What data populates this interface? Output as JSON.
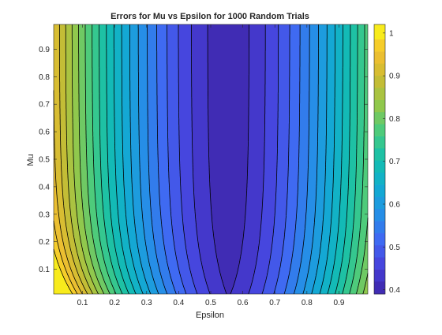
{
  "chart_data": {
    "type": "heatmap",
    "subtype": "filled-contour",
    "title": "Errors for Mu vs Epsilon for 1000 Random Trials",
    "xlabel": "Epsilon",
    "ylabel": "Mu",
    "xlim": [
      0.01,
      0.99
    ],
    "ylim": [
      0.01,
      0.99
    ],
    "xticks": [
      0.1,
      0.2,
      0.3,
      0.4,
      0.5,
      0.6,
      0.7,
      0.8,
      0.9
    ],
    "xtick_labels": [
      "0.1",
      "0.2",
      "0.3",
      "0.4",
      "0.5",
      "0.6",
      "0.7",
      "0.8",
      "0.9"
    ],
    "yticks": [
      0.1,
      0.2,
      0.3,
      0.4,
      0.5,
      0.6,
      0.7,
      0.8,
      0.9
    ],
    "ytick_labels": [
      "0.1",
      "0.2",
      "0.3",
      "0.4",
      "0.5",
      "0.6",
      "0.7",
      "0.8",
      "0.9"
    ],
    "colorbar": {
      "limits": [
        0.39,
        1.02
      ],
      "ticks": [
        0.4,
        0.5,
        0.6,
        0.7,
        0.8,
        0.9,
        1
      ],
      "tick_labels": [
        "0.4",
        "0.5",
        "0.6",
        "0.7",
        "0.8",
        "0.9",
        "1"
      ],
      "colormap": "parula"
    },
    "contour_levels": [
      0.4195,
      0.4478,
      0.4761,
      0.5044,
      0.5327,
      0.561,
      0.5893,
      0.6176,
      0.6459,
      0.6742,
      0.7025,
      0.7308,
      0.7591,
      0.7874,
      0.8157,
      0.844,
      0.8723,
      0.9006,
      0.9289,
      0.9572,
      0.9855
    ],
    "approx_surface": {
      "minimum_value": 0.4,
      "minimum_at": {
        "epsilon": 0.56,
        "mu": "0.2 to 1.0"
      },
      "value_at_epsilon_0.01_mu_0.99": 0.82,
      "value_at_epsilon_0.99_mu_0.99": 0.62,
      "value_at_epsilon_0.01_mu_0.01": 1.0,
      "value_at_epsilon_0.99_mu_0.01": 0.7
    },
    "grid": false
  }
}
